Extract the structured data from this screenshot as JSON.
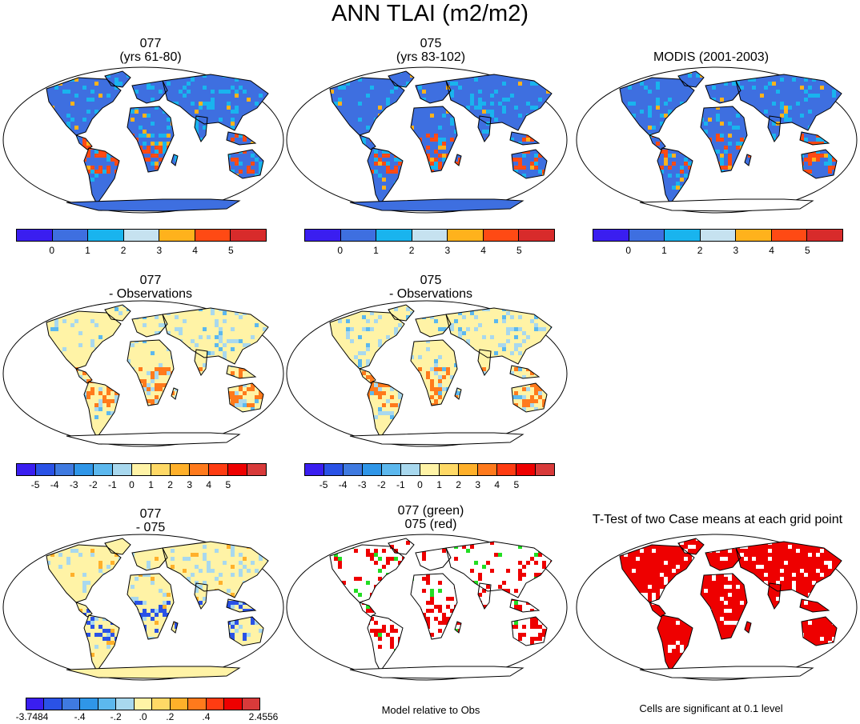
{
  "title": "ANN TLAI (m2/m2)",
  "panels": {
    "p1": {
      "line1": "077",
      "line2": "(yrs 61-80)"
    },
    "p2": {
      "line1": "075",
      "line2": "(yrs 83-102)"
    },
    "p3": {
      "line1": "MODIS (2001-2003)"
    },
    "p4": {
      "line1": "077",
      "line2": "- Observations"
    },
    "p5": {
      "line1": "075",
      "line2": "- Observations"
    },
    "p6": {
      "line1": "077",
      "line2": "- 075"
    },
    "p7": {
      "line1": "077 (green)",
      "line2": "075 (red)"
    },
    "p8": {
      "line1": "T-Test of two Case means at each grid point"
    }
  },
  "colorbars": {
    "abs": {
      "colors": [
        "#3a1ef0",
        "#3e6fe0",
        "#19b4ee",
        "#c6e2f0",
        "#ffb21c",
        "#ff4a14",
        "#d82b2b"
      ],
      "ticks": [
        "0",
        "1",
        "2",
        "3",
        "4",
        "5"
      ]
    },
    "diff": {
      "colors": [
        "#3a1ef0",
        "#2a52e6",
        "#3f7ae0",
        "#2f96e8",
        "#5cb8ee",
        "#a8d8ee",
        "#fff3a6",
        "#ffd966",
        "#ffb02a",
        "#ff7a1c",
        "#ff3c12",
        "#ee0000",
        "#d83a3a"
      ],
      "ticks": [
        "-5",
        "-4",
        "-3",
        "-2",
        "-1",
        "0",
        "1",
        "2",
        "3",
        "4",
        "5"
      ]
    },
    "mdiff": {
      "colors": [
        "#3a1ef0",
        "#2a52e6",
        "#3f7ae0",
        "#2f96e8",
        "#5cb8ee",
        "#a8d8ee",
        "#fff3a6",
        "#ffd966",
        "#ffb02a",
        "#ff7a1c",
        "#ff3c12",
        "#ee0000",
        "#d83a3a"
      ],
      "ticks": [
        "-3.7484",
        "-.4",
        "-.2",
        ".0",
        ".2",
        ".4",
        "2.4556"
      ]
    }
  },
  "notes": {
    "model_rel": "Model relative to Obs",
    "cells_sig": "Cells are significant at 0.1 level"
  },
  "map_palettes": {
    "p1": {
      "base": "#3e6fe0",
      "mid": "#19b4ee",
      "hi": "#ffb21c",
      "top": "#ff4a14",
      "ice": "#3e6fe0"
    },
    "p2": {
      "base": "#3e6fe0",
      "mid": "#19b4ee",
      "hi": "#ffb21c",
      "top": "#ff4a14",
      "ice": "#3e6fe0"
    },
    "p3": {
      "base": "#3e6fe0",
      "mid": "#19b4ee",
      "hi": "#ffb21c",
      "top": "#ff4a14",
      "ice": "#ffffff"
    },
    "p4": {
      "base": "#fff3a6",
      "mid": "#a8d8ee",
      "hi": "#5cb8ee",
      "top": "#ff7a1c",
      "ice": "#ffffff"
    },
    "p5": {
      "base": "#fff3a6",
      "mid": "#a8d8ee",
      "hi": "#5cb8ee",
      "top": "#ff7a1c",
      "ice": "#ffffff"
    },
    "p6": {
      "base": "#fff3a6",
      "mid": "#a8d8ee",
      "hi": "#ffb02a",
      "top": "#2a52e6",
      "ice": "#fff3a6"
    },
    "p7": {
      "base": "#ffffff",
      "mid": "#ee0000",
      "hi": "#22dd22",
      "top": "#ee0000",
      "ice": "#ffffff"
    },
    "p8": {
      "base": "#ee0000",
      "mid": "#ffffff",
      "hi": "#ee0000",
      "top": "#ee0000",
      "ice": "#ffffff"
    }
  }
}
